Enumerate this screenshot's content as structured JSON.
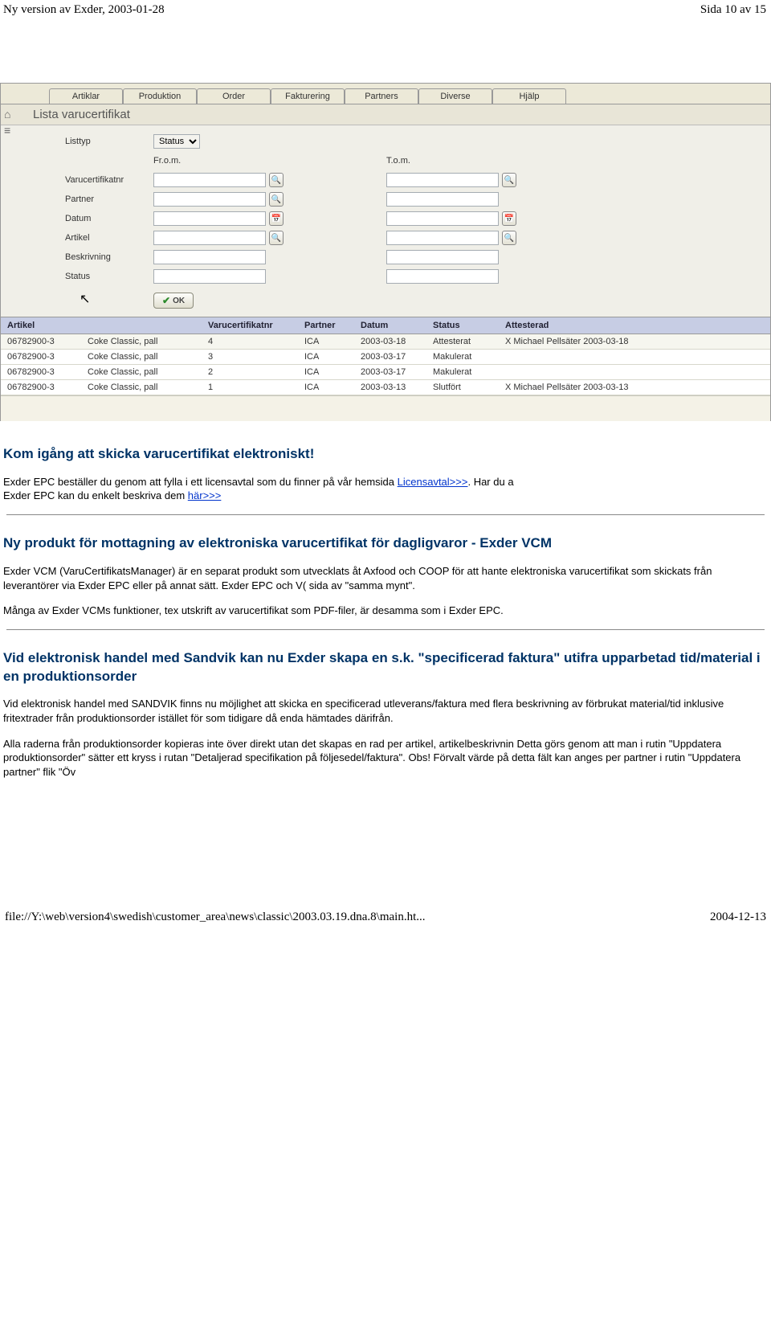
{
  "header": {
    "left": "Ny version av Exder, 2003-01-28",
    "right": "Sida 10 av 15"
  },
  "app": {
    "tabs": [
      "Artiklar",
      "Produktion",
      "Order",
      "Fakturering",
      "Partners",
      "Diverse",
      "Hjälp"
    ],
    "title": "Lista varucertifikat",
    "labels": {
      "listtyp": "Listtyp",
      "from": "Fr.o.m.",
      "to": "T.o.m.",
      "varucert": "Varucertifikatnr",
      "partner": "Partner",
      "datum": "Datum",
      "artikel": "Artikel",
      "beskrivning": "Beskrivning",
      "status": "Status"
    },
    "listtyp_value": "Status",
    "ok_label": "OK",
    "columns": [
      "Artikel",
      "",
      "Varucertifikatnr",
      "Partner",
      "Datum",
      "Status",
      "Attesterad"
    ],
    "rows": [
      {
        "art": "06782900-3",
        "name": "Coke Classic, pall",
        "nr": "4",
        "partner": "ICA",
        "datum": "2003-03-18",
        "status": "Attesterat",
        "att": "X Michael Pellsäter 2003-03-18"
      },
      {
        "art": "06782900-3",
        "name": "Coke Classic, pall",
        "nr": "3",
        "partner": "ICA",
        "datum": "2003-03-17",
        "status": "Makulerat",
        "att": ""
      },
      {
        "art": "06782900-3",
        "name": "Coke Classic, pall",
        "nr": "2",
        "partner": "ICA",
        "datum": "2003-03-17",
        "status": "Makulerat",
        "att": ""
      },
      {
        "art": "06782900-3",
        "name": "Coke Classic, pall",
        "nr": "1",
        "partner": "ICA",
        "datum": "2003-03-13",
        "status": "Slutfört",
        "att": "X Michael Pellsäter 2003-03-13"
      }
    ]
  },
  "article": {
    "h_kom": "Kom igång att skicka varucertifikat elektroniskt!",
    "p1a": "Exder EPC beställer du genom att fylla i ett licensavtal som du finner på vår hemsida ",
    "link1": "Licensavtal>>>",
    "p1b": ". Har du a",
    "p2a": "Exder EPC kan du enkelt beskriva dem ",
    "link2": "här>>>",
    "h_prod": "Ny produkt för mottagning av elektroniska varucertifikat för dagligvaror - Exder VCM",
    "p3": "Exder VCM (VaruCertifikatsManager) är en separat produkt som utvecklats åt Axfood och COOP för att hante elektroniska varucertifikat som skickats från leverantörer via Exder EPC eller på annat sätt. Exder EPC och V( sida av \"samma mynt\".",
    "p4": "Många av Exder VCMs funktioner, tex utskrift av varucertifikat som PDF-filer, är desamma som i Exder EPC.",
    "h_sandvik": "Vid elektronisk handel med Sandvik kan nu Exder skapa en s.k. \"specificerad faktura\" utifra upparbetad tid/material i en produktionsorder",
    "p5": "Vid elektronisk handel med SANDVIK finns nu möjlighet att skicka en specificerad utleverans/faktura med flera beskrivning av förbrukat material/tid inklusive fritextrader från produktionsorder istället för som tidigare då enda hämtades därifrån.",
    "p6": "Alla raderna från produktionsorder kopieras inte över direkt utan det skapas en rad per artikel, artikelbeskrivnin Detta görs genom att man i rutin \"Uppdatera produktionsorder\" sätter ett kryss i rutan \"Detaljerad specifikation på följesedel/faktura\". Obs! Förvalt värde på detta fält kan anges per partner i rutin \"Uppdatera partner\" flik \"Öv"
  },
  "footer": {
    "left": "file://Y:\\web\\version4\\swedish\\customer_area\\news\\classic\\2003.03.19.dna.8\\main.ht...",
    "right": "2004-12-13"
  },
  "colors": {
    "heading": "#003366",
    "link": "#0033cc",
    "tab_bg": "#ece9d8",
    "grid_header": "#c7cde4"
  }
}
